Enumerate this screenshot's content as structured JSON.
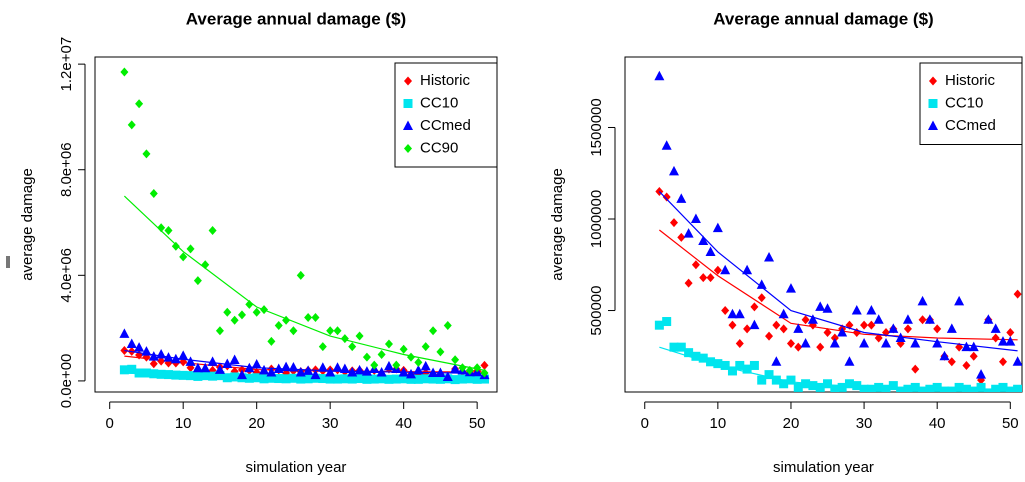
{
  "chart_data": [
    {
      "type": "scatter",
      "title": "Average annual damage ($)",
      "x_label": "simulation year",
      "y_label": "average damage",
      "xlim": [
        -2,
        52.7
      ],
      "ylim": [
        -420000,
        12270000
      ],
      "xticks": [
        0,
        10,
        20,
        30,
        40,
        50
      ],
      "yticks": [
        {
          "value": 0,
          "label": "0.0e+00"
        },
        {
          "value": 4000000,
          "label": "4.0e+06"
        },
        {
          "value": 8000000,
          "label": "8.0e+06"
        },
        {
          "value": 12000000,
          "label": "1.2e+07"
        }
      ],
      "legend": "topright",
      "x": [
        2,
        3,
        4,
        5,
        6,
        7,
        8,
        9,
        10,
        11,
        12,
        13,
        14,
        15,
        16,
        17,
        18,
        19,
        20,
        21,
        22,
        23,
        24,
        25,
        26,
        27,
        28,
        29,
        30,
        31,
        32,
        33,
        34,
        35,
        36,
        37,
        38,
        39,
        40,
        41,
        42,
        43,
        44,
        45,
        46,
        47,
        48,
        49,
        50,
        51
      ],
      "fit_x": [
        2,
        10,
        20,
        30,
        40,
        51
      ],
      "series": [
        {
          "name": "Historic",
          "color": "#ff0000",
          "marker": "diamond",
          "values": [
            1150000,
            1120000,
            980000,
            900000,
            650000,
            750000,
            680000,
            680000,
            720000,
            500000,
            420000,
            320000,
            400000,
            520000,
            570000,
            360000,
            420000,
            400000,
            320000,
            300000,
            450000,
            420000,
            300000,
            380000,
            350000,
            400000,
            420000,
            380000,
            420000,
            420000,
            350000,
            380000,
            400000,
            320000,
            400000,
            180000,
            450000,
            450000,
            400000,
            250000,
            220000,
            300000,
            200000,
            250000,
            120000,
            450000,
            350000,
            220000,
            380000,
            590000
          ],
          "fit": [
            940000,
            690000,
            430000,
            370000,
            350000,
            340000
          ]
        },
        {
          "name": "CC10",
          "color": "#00e5ee",
          "marker": "square",
          "values": [
            420000,
            440000,
            300000,
            300000,
            270000,
            250000,
            240000,
            220000,
            210000,
            200000,
            170000,
            200000,
            180000,
            200000,
            120000,
            150000,
            120000,
            100000,
            120000,
            80000,
            100000,
            90000,
            80000,
            100000,
            70000,
            80000,
            100000,
            90000,
            70000,
            70000,
            80000,
            70000,
            90000,
            60000,
            70000,
            80000,
            60000,
            70000,
            80000,
            60000,
            60000,
            80000,
            70000,
            60000,
            80000,
            50000,
            70000,
            80000,
            60000,
            70000
          ],
          "fit": [
            300000,
            200000,
            110000,
            80000,
            70000,
            60000
          ]
        },
        {
          "name": "CCmed",
          "color": "#0000ff",
          "marker": "triangle",
          "values": [
            1780000,
            1400000,
            1260000,
            1110000,
            920000,
            1000000,
            880000,
            820000,
            950000,
            720000,
            480000,
            480000,
            720000,
            420000,
            640000,
            790000,
            220000,
            480000,
            620000,
            400000,
            320000,
            450000,
            520000,
            510000,
            320000,
            380000,
            220000,
            500000,
            320000,
            500000,
            450000,
            320000,
            400000,
            350000,
            450000,
            320000,
            550000,
            450000,
            320000,
            250000,
            400000,
            550000,
            300000,
            300000,
            150000,
            450000,
            400000,
            330000,
            330000,
            220000
          ],
          "fit": [
            1150000,
            820000,
            500000,
            380000,
            330000,
            280000
          ]
        },
        {
          "name": "CC90",
          "color": "#00ee00",
          "marker": "diamond",
          "values": [
            11700000,
            9700000,
            10500000,
            8600000,
            7100000,
            5800000,
            5700000,
            5100000,
            4700000,
            5000000,
            3800000,
            4400000,
            5700000,
            1900000,
            2600000,
            2300000,
            2500000,
            2900000,
            2600000,
            2700000,
            1500000,
            2100000,
            2300000,
            1900000,
            4000000,
            2400000,
            2400000,
            1300000,
            1900000,
            1900000,
            1600000,
            1300000,
            1700000,
            900000,
            600000,
            1000000,
            1400000,
            600000,
            1200000,
            900000,
            700000,
            1300000,
            1900000,
            1100000,
            2100000,
            800000,
            500000,
            400000,
            500000,
            300000
          ],
          "fit": [
            7000000,
            4900000,
            2800000,
            1700000,
            1000000,
            400000
          ]
        }
      ]
    },
    {
      "type": "scatter",
      "title": "Average annual damage ($)",
      "x_label": "simulation year",
      "y_label": "average damage",
      "xlim": [
        -2.7,
        51.6
      ],
      "ylim": [
        55000,
        1885000
      ],
      "xticks": [
        0,
        10,
        20,
        30,
        40,
        50
      ],
      "yticks": [
        500000,
        1000000,
        1500000
      ],
      "legend": "topright",
      "x": [
        2,
        3,
        4,
        5,
        6,
        7,
        8,
        9,
        10,
        11,
        12,
        13,
        14,
        15,
        16,
        17,
        18,
        19,
        20,
        21,
        22,
        23,
        24,
        25,
        26,
        27,
        28,
        29,
        30,
        31,
        32,
        33,
        34,
        35,
        36,
        37,
        38,
        39,
        40,
        41,
        42,
        43,
        44,
        45,
        46,
        47,
        48,
        49,
        50,
        51
      ],
      "fit_x": [
        2,
        10,
        20,
        30,
        40,
        51
      ],
      "series": [
        {
          "name": "Historic",
          "color": "#ff0000",
          "marker": "diamond",
          "values": [
            1150000,
            1120000,
            980000,
            900000,
            650000,
            750000,
            680000,
            680000,
            720000,
            500000,
            420000,
            320000,
            400000,
            520000,
            570000,
            360000,
            420000,
            400000,
            320000,
            300000,
            450000,
            420000,
            300000,
            380000,
            350000,
            400000,
            420000,
            380000,
            420000,
            420000,
            350000,
            380000,
            400000,
            320000,
            400000,
            180000,
            450000,
            450000,
            400000,
            250000,
            220000,
            300000,
            200000,
            250000,
            120000,
            450000,
            350000,
            220000,
            380000,
            590000
          ],
          "fit": [
            940000,
            690000,
            430000,
            370000,
            350000,
            340000
          ]
        },
        {
          "name": "CC10",
          "color": "#00e5ee",
          "marker": "square",
          "values": [
            420000,
            440000,
            300000,
            300000,
            270000,
            250000,
            240000,
            220000,
            210000,
            200000,
            170000,
            200000,
            180000,
            200000,
            120000,
            150000,
            120000,
            100000,
            120000,
            80000,
            100000,
            90000,
            80000,
            100000,
            70000,
            80000,
            100000,
            90000,
            70000,
            70000,
            80000,
            70000,
            90000,
            60000,
            70000,
            80000,
            60000,
            70000,
            80000,
            60000,
            60000,
            80000,
            70000,
            60000,
            80000,
            50000,
            70000,
            80000,
            60000,
            70000
          ],
          "fit": [
            300000,
            200000,
            110000,
            80000,
            70000,
            60000
          ]
        },
        {
          "name": "CCmed",
          "color": "#0000ff",
          "marker": "triangle",
          "values": [
            1780000,
            1400000,
            1260000,
            1110000,
            920000,
            1000000,
            880000,
            820000,
            950000,
            720000,
            480000,
            480000,
            720000,
            420000,
            640000,
            790000,
            220000,
            480000,
            620000,
            400000,
            320000,
            450000,
            520000,
            510000,
            320000,
            380000,
            220000,
            500000,
            320000,
            500000,
            450000,
            320000,
            400000,
            350000,
            450000,
            320000,
            550000,
            450000,
            320000,
            250000,
            400000,
            550000,
            300000,
            300000,
            150000,
            450000,
            400000,
            330000,
            330000,
            220000
          ],
          "fit": [
            1150000,
            820000,
            500000,
            380000,
            330000,
            280000
          ]
        }
      ]
    }
  ]
}
